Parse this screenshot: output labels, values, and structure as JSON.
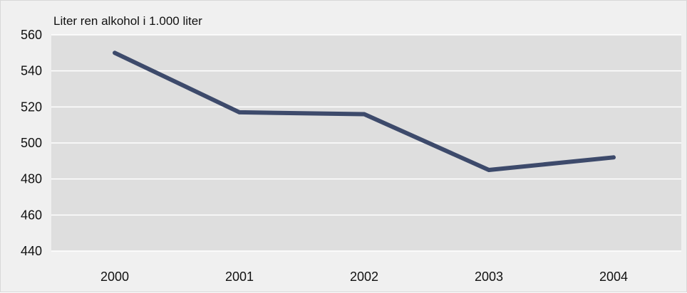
{
  "chart_data": {
    "type": "line",
    "ylabel": "Liter ren alkohol i 1.000 liter",
    "categories": [
      "2000",
      "2001",
      "2002",
      "2003",
      "2004"
    ],
    "series": [
      {
        "values": [
          550,
          517,
          516,
          485,
          492
        ],
        "color": "#3d4a6b"
      }
    ],
    "ylim": [
      440,
      560
    ],
    "yticks": [
      440,
      460,
      480,
      500,
      520,
      540,
      560
    ],
    "grid": true,
    "plot_background": "#dedede",
    "grid_color": "#ffffff"
  }
}
